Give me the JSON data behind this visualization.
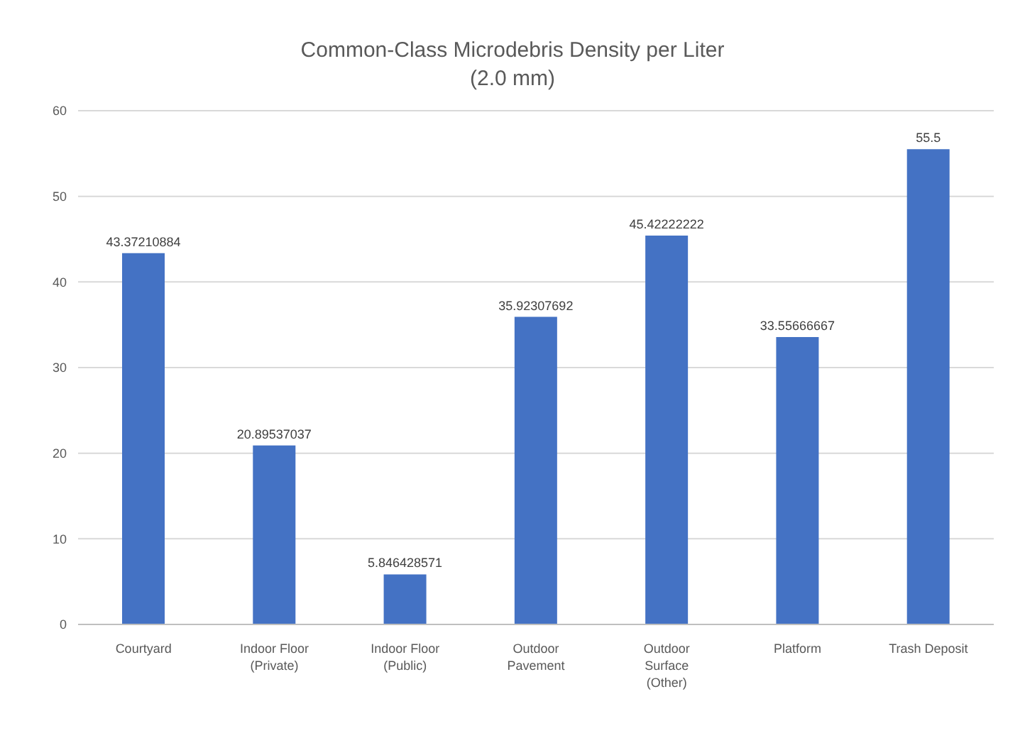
{
  "chart_data": {
    "type": "bar",
    "title": "Common-Class Microdebris Density per Liter (2.0 mm)",
    "categories": [
      "Courtyard",
      "Indoor Floor (Private)",
      "Indoor Floor (Public)",
      "Outdoor Pavement",
      "Outdoor Surface (Other)",
      "Platform",
      "Trash Deposit"
    ],
    "values": [
      43.37210884,
      20.89537037,
      5.846428571,
      35.92307692,
      45.42222222,
      33.55666667,
      55.5
    ],
    "color": "#4472c4",
    "ylim": [
      0,
      60
    ],
    "yticks": [
      0,
      10,
      20,
      30,
      40,
      50,
      60
    ],
    "grid": "y",
    "data_labels": true
  }
}
